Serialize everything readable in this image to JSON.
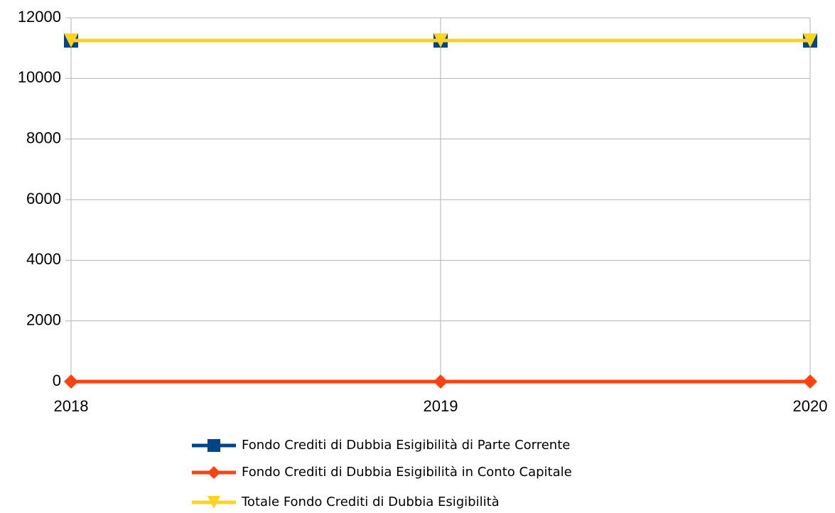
{
  "chart_data": {
    "type": "line",
    "categories": [
      "2018",
      "2019",
      "2020"
    ],
    "series": [
      {
        "name": "Fondo Crediti di Dubbia Esigibilità di Parte Corrente",
        "color": "#004586",
        "marker": "square",
        "values": [
          11250,
          11250,
          11250
        ]
      },
      {
        "name": "Fondo Crediti di Dubbia Esigibilità in Conto Capitale",
        "color": "#ff420e",
        "marker": "diamond",
        "values": [
          0,
          0,
          0
        ]
      },
      {
        "name": "Totale Fondo Crediti di Dubbia Esigibilità",
        "color": "#ffd320",
        "marker": "triangle-down",
        "values": [
          11250,
          11250,
          11250
        ]
      }
    ],
    "ylim": [
      0,
      12000
    ],
    "yticks": [
      0,
      2000,
      4000,
      6000,
      8000,
      10000,
      12000
    ],
    "grid": true,
    "legend": "bottom"
  }
}
